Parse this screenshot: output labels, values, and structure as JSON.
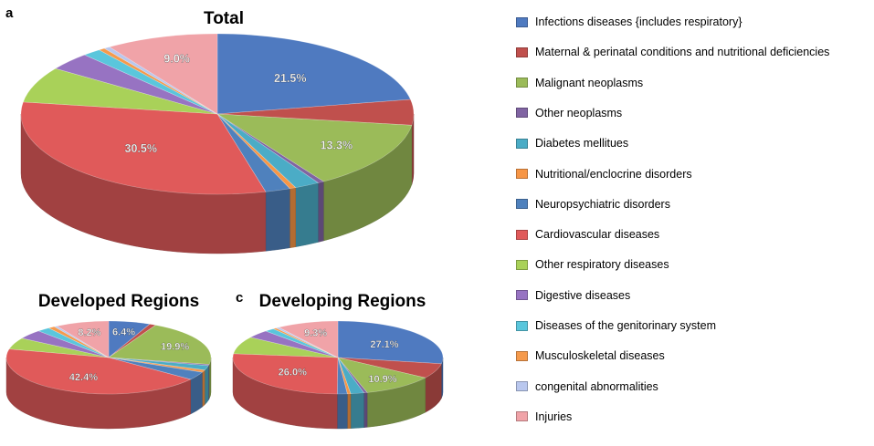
{
  "panel_letters": {
    "a": "a",
    "b": "",
    "c": "c"
  },
  "titles": {
    "total": "Total",
    "developed": "Developed Regions",
    "developing": "Developing Regions"
  },
  "legend": [
    {
      "label": "Infections diseases {includes respiratory}",
      "color": "#4f7ac0"
    },
    {
      "label": "Maternal & perinatal conditions and nutritional deficiencies",
      "color": "#c0504d"
    },
    {
      "label": "Malignant neoplasms",
      "color": "#9bbb59"
    },
    {
      "label": "Other neoplasms",
      "color": "#8064a2"
    },
    {
      "label": "Diabetes mellitues",
      "color": "#4bacc6"
    },
    {
      "label": "Nutritional/enclocrine disorders",
      "color": "#f79646"
    },
    {
      "label": "Neuropsychiatric disorders",
      "color": "#4f81bd"
    },
    {
      "label": "Cardiovascular diseases",
      "color": "#e05a5a"
    },
    {
      "label": "Other respiratory diseases",
      "color": "#a9d159"
    },
    {
      "label": "Digestive diseases",
      "color": "#9773c2"
    },
    {
      "label": "Diseases of the genitorinary system",
      "color": "#5ac6dc"
    },
    {
      "label": "Musculoskeletal diseases",
      "color": "#f59a4c"
    },
    {
      "label": "congenital abnormalities",
      "color": "#b9c7ee"
    },
    {
      "label": "Injuries",
      "color": "#f0a3a8"
    }
  ],
  "chart_data": [
    {
      "type": "pie",
      "title": "Total",
      "categories": [
        "Infections diseases {includes respiratory}",
        "Maternal & perinatal conditions and nutritional deficiencies",
        "Malignant neoplasms",
        "Other neoplasms",
        "Diabetes mellitues",
        "Nutritional/enclocrine disorders",
        "Neuropsychiatric disorders",
        "Cardiovascular diseases",
        "Other respiratory diseases",
        "Digestive diseases",
        "Diseases of the genitorinary system",
        "Musculoskeletal diseases",
        "congenital abnormalities",
        "Injuries"
      ],
      "values": [
        21.5,
        5.0,
        13.3,
        0.5,
        2.0,
        0.5,
        2.0,
        30.5,
        7.0,
        3.5,
        1.5,
        0.5,
        0.5,
        9.0
      ],
      "data_labels": [
        "21.5%",
        "",
        "13.3%",
        "",
        "",
        "",
        "",
        "30.5%",
        "",
        "",
        "",
        "",
        "",
        "9.0%"
      ]
    },
    {
      "type": "pie",
      "title": "Developed Regions",
      "categories": [
        "Infections diseases {includes respiratory}",
        "Maternal & perinatal conditions and nutritional deficiencies",
        "Malignant neoplasms",
        "Other neoplasms",
        "Diabetes mellitues",
        "Nutritional/enclocrine disorders",
        "Neuropsychiatric disorders",
        "Cardiovascular diseases",
        "Other respiratory diseases",
        "Digestive diseases",
        "Diseases of the genitorinary system",
        "Musculoskeletal diseases",
        "congenital abnormalities",
        "Injuries"
      ],
      "values": [
        6.4,
        1.0,
        19.9,
        0.5,
        2.0,
        1.0,
        3.5,
        42.4,
        5.0,
        4.0,
        2.0,
        1.0,
        0.5,
        8.2
      ],
      "data_labels": [
        "6.4%",
        "",
        "19.9%",
        "",
        "",
        "",
        "",
        "42.4%",
        "",
        "",
        "",
        "",
        "",
        "8.2%"
      ]
    },
    {
      "type": "pie",
      "title": "Developing Regions",
      "categories": [
        "Infections diseases {includes respiratory}",
        "Maternal & perinatal conditions and nutritional deficiencies",
        "Malignant neoplasms",
        "Other neoplasms",
        "Diabetes mellitues",
        "Nutritional/enclocrine disorders",
        "Neuropsychiatric disorders",
        "Cardiovascular diseases",
        "Other respiratory diseases",
        "Digestive diseases",
        "Diseases of the genitorinary system",
        "Musculoskeletal diseases",
        "congenital abnormalities",
        "Injuries"
      ],
      "values": [
        27.1,
        6.5,
        10.9,
        0.5,
        2.0,
        0.5,
        1.5,
        26.0,
        7.5,
        3.5,
        1.5,
        0.5,
        0.5,
        9.3
      ],
      "data_labels": [
        "27.1%",
        "",
        "10.9%",
        "",
        "",
        "",
        "",
        "26.0%",
        "",
        "",
        "",
        "",
        "",
        "9.3%"
      ]
    }
  ]
}
